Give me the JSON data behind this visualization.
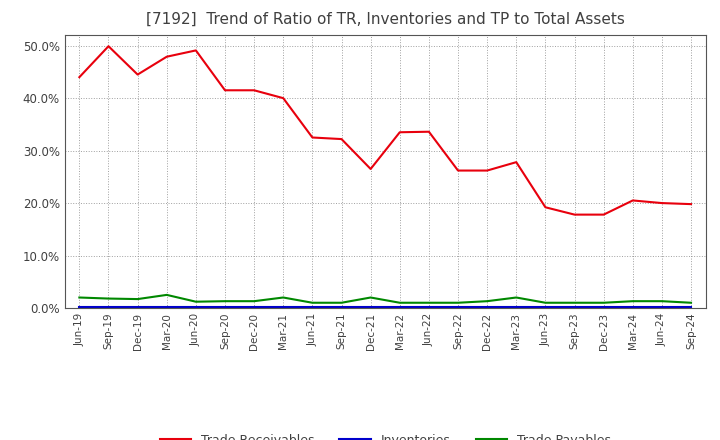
{
  "title": "[7192]  Trend of Ratio of TR, Inventories and TP to Total Assets",
  "labels": [
    "Jun-19",
    "Sep-19",
    "Dec-19",
    "Mar-20",
    "Jun-20",
    "Sep-20",
    "Dec-20",
    "Mar-21",
    "Jun-21",
    "Sep-21",
    "Dec-21",
    "Mar-22",
    "Jun-22",
    "Sep-22",
    "Dec-22",
    "Mar-23",
    "Jun-23",
    "Sep-23",
    "Dec-23",
    "Mar-24",
    "Jun-24",
    "Sep-24"
  ],
  "trade_receivables": [
    0.44,
    0.499,
    0.445,
    0.479,
    0.491,
    0.415,
    0.415,
    0.4,
    0.325,
    0.322,
    0.265,
    0.335,
    0.336,
    0.262,
    0.262,
    0.278,
    0.192,
    0.178,
    0.178,
    0.205,
    0.2,
    0.198
  ],
  "inventories": [
    0.001,
    0.001,
    0.001,
    0.001,
    0.001,
    0.001,
    0.001,
    0.001,
    0.001,
    0.001,
    0.001,
    0.001,
    0.001,
    0.001,
    0.001,
    0.001,
    0.001,
    0.001,
    0.001,
    0.001,
    0.001,
    0.001
  ],
  "trade_payables": [
    0.02,
    0.018,
    0.017,
    0.025,
    0.012,
    0.013,
    0.013,
    0.02,
    0.01,
    0.01,
    0.02,
    0.01,
    0.01,
    0.01,
    0.013,
    0.02,
    0.01,
    0.01,
    0.01,
    0.013,
    0.013,
    0.01
  ],
  "tr_color": "#e8000d",
  "inv_color": "#0000cc",
  "tp_color": "#008800",
  "ylim": [
    0.0,
    0.52
  ],
  "yticks": [
    0.0,
    0.1,
    0.2,
    0.3,
    0.4,
    0.5
  ],
  "bg_color": "#ffffff",
  "plot_bg_color": "#ffffff",
  "grid_color": "#888888",
  "title_fontsize": 11,
  "title_color": "#404040",
  "tick_color": "#404040",
  "legend_labels": [
    "Trade Receivables",
    "Inventories",
    "Trade Payables"
  ]
}
